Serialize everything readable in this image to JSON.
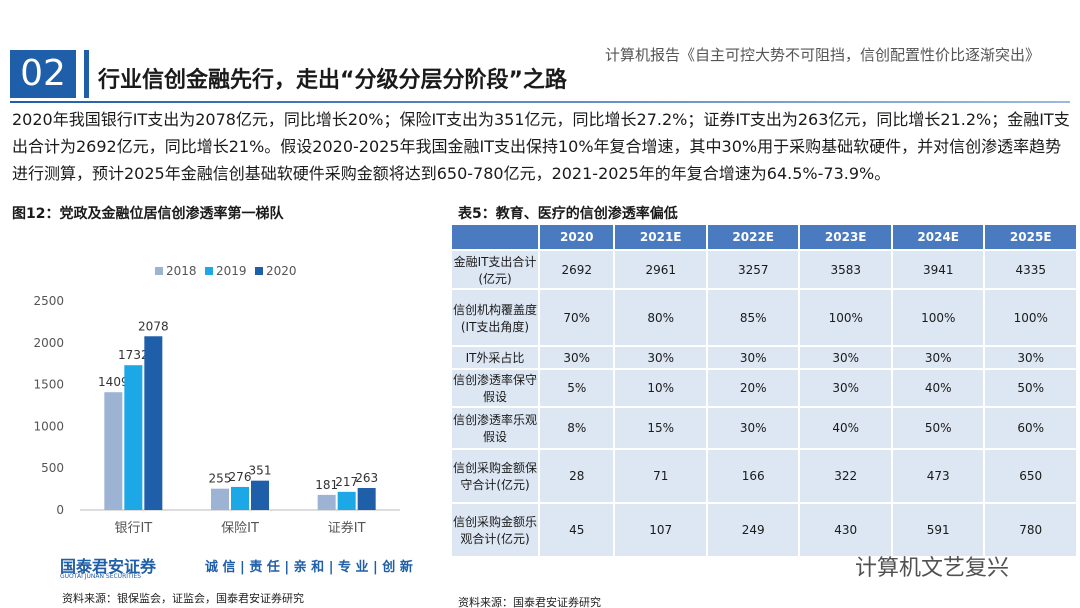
{
  "header": {
    "number": "02",
    "title": "行业信创金融先行，走出“分级分层分阶段”之路",
    "report": "计算机报告《自主可控大势不可阻挡，信创配置性价比逐渐突出》"
  },
  "body": "2020年我国银行IT支出为2078亿元，同比增长20%；保险IT支出为351亿元，同比增长27.2%；证券IT支出为263亿元，同比增长21.2%；金融IT支出合计为2692亿元，同比增长21%。假设2020-2025年我国金融IT支出保持10%年复合增速，其中30%用于采购基础软硬件，并对信创渗透率趋势进行测算，预计2025年金融信创基础软硬件采购金额将达到650-780亿元，2021-2025年的年复合增速为64.5%-73.9%。",
  "chart_data": {
    "type": "bar",
    "title": "图12：党政及金融位居信创渗透率第一梯队",
    "categories": [
      "银行IT",
      "保险IT",
      "证券IT"
    ],
    "series": [
      {
        "name": "2018",
        "color": "#9db3d3",
        "values": [
          1409,
          255,
          181
        ]
      },
      {
        "name": "2019",
        "color": "#1ca7e6",
        "values": [
          1732,
          276,
          217
        ]
      },
      {
        "name": "2020",
        "color": "#1f5ea8",
        "values": [
          2078,
          351,
          263
        ]
      }
    ],
    "ylim": [
      0,
      2500
    ],
    "yticks": [
      0,
      500,
      1000,
      1500,
      2000,
      2500
    ],
    "grid": false,
    "legend": "top"
  },
  "chart_source": "资料来源：银保监会，证监会，国泰君安证券研究",
  "table": {
    "title": "表5：教育、医疗的信创渗透率偏低",
    "columns": [
      "2020",
      "2021E",
      "2022E",
      "2023E",
      "2024E",
      "2025E"
    ],
    "rows": [
      {
        "label": "金融IT支出合计(亿元)",
        "cells": [
          "2692",
          "2961",
          "3257",
          "3583",
          "3941",
          "4335"
        ]
      },
      {
        "label": "信创机构覆盖度(IT支出角度)",
        "cells": [
          "70%",
          "80%",
          "85%",
          "100%",
          "100%",
          "100%"
        ]
      },
      {
        "label": "IT外采占比",
        "cells": [
          "30%",
          "30%",
          "30%",
          "30%",
          "30%",
          "30%"
        ]
      },
      {
        "label": "信创渗透率保守假设",
        "cells": [
          "5%",
          "10%",
          "20%",
          "30%",
          "40%",
          "50%"
        ]
      },
      {
        "label": "信创渗透率乐观假设",
        "cells": [
          "8%",
          "15%",
          "30%",
          "40%",
          "50%",
          "60%"
        ]
      },
      {
        "label": "信创采购金额保守合计(亿元)",
        "cells": [
          "28",
          "71",
          "166",
          "322",
          "473",
          "650"
        ]
      },
      {
        "label": "信创采购金额乐观合计(亿元)",
        "cells": [
          "45",
          "107",
          "249",
          "430",
          "591",
          "780"
        ]
      }
    ]
  },
  "table_source": "资料来源：国泰君安证券研究",
  "footer": {
    "company": "国泰君安证券",
    "company_en": "GUOTAI JUNAN SECURITIES",
    "slogan": "诚 信 | 责 任 | 亲 和 | 专 业 | 创 新",
    "watermark": "计算机文艺复兴"
  }
}
